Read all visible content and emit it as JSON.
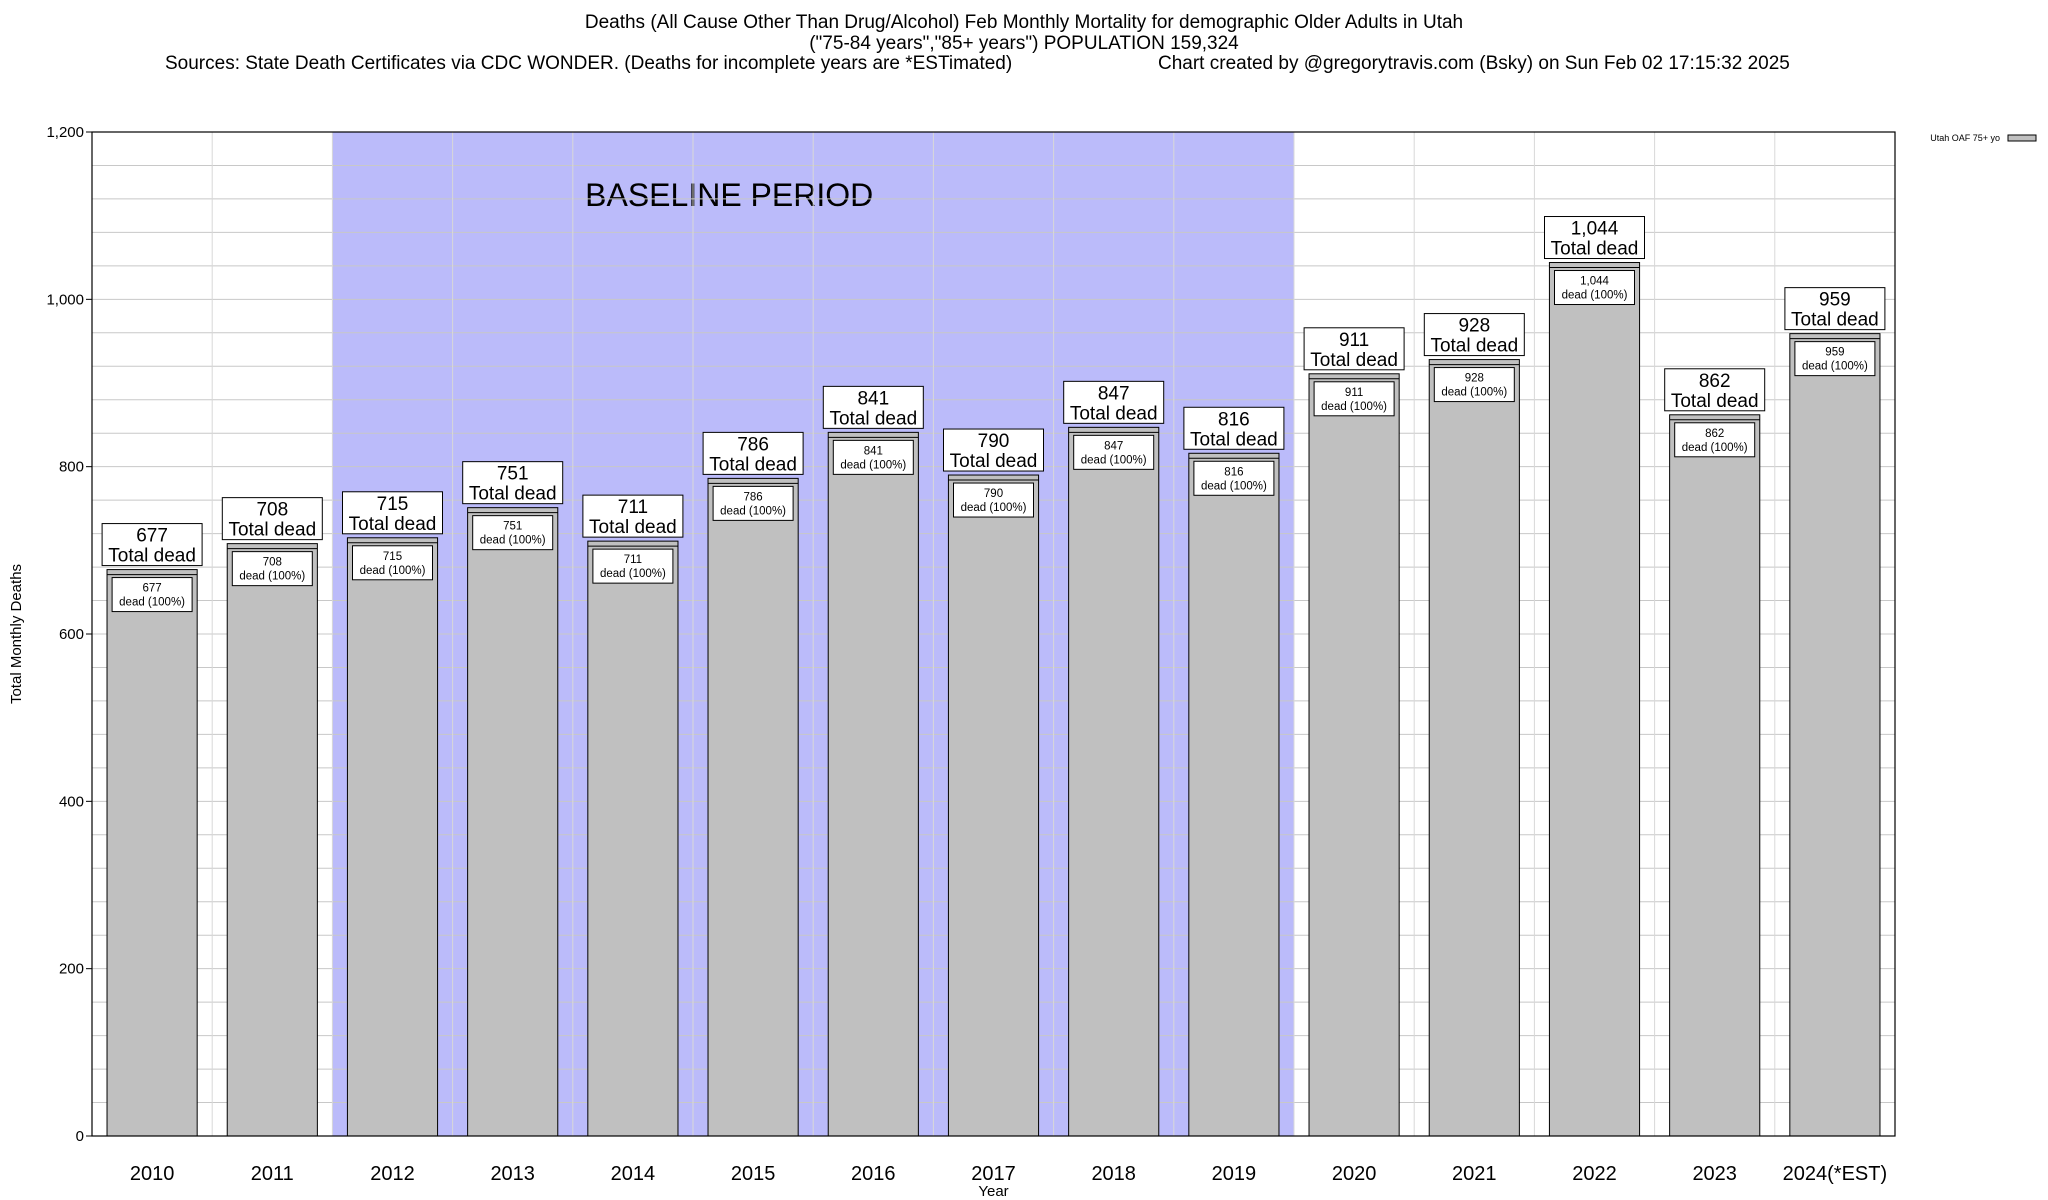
{
  "chart_data": {
    "type": "bar",
    "title": "Deaths (All Cause Other Than Drug/Alcohol) Feb Monthly Mortality for demographic Older Adults in Utah",
    "subtitle": "(\"75-84 years\",\"85+ years\") POPULATION 159,324",
    "sources": "Sources: State Death Certificates via CDC WONDER. (Deaths for incomplete years are *ESTimated)",
    "credit": "Chart created by @gregorytravis.com (Bsky) on Sun Feb 02 17:15:32 2025",
    "xlabel": "Year",
    "ylabel": "Total Monthly Deaths",
    "ylim": [
      0,
      1200
    ],
    "yticks": [
      0,
      200,
      400,
      600,
      800,
      1000,
      1200
    ],
    "ytick_labels": [
      "0",
      "200",
      "400",
      "600",
      "800",
      "1,000",
      "1,200"
    ],
    "minor_grid_step": 40,
    "grid": true,
    "legend": {
      "label": "Utah OAF 75+ yo",
      "placement": "top-right"
    },
    "categories": [
      "2010",
      "2011",
      "2012",
      "2013",
      "2014",
      "2015",
      "2016",
      "2017",
      "2018",
      "2019",
      "2020",
      "2021",
      "2022",
      "2023",
      "2024(*EST)"
    ],
    "series": [
      {
        "name": "Utah OAF 75+ yo",
        "values": [
          677,
          708,
          715,
          751,
          711,
          786,
          841,
          790,
          847,
          816,
          911,
          928,
          1044,
          862,
          959
        ]
      }
    ],
    "value_labels": [
      "677",
      "708",
      "715",
      "751",
      "711",
      "786",
      "841",
      "790",
      "847",
      "816",
      "911",
      "928",
      "1,044",
      "862",
      "959"
    ],
    "top_label_suffix": "Total dead",
    "inner_label_suffix": "dead (100%)",
    "baseline": {
      "label": "BASELINE PERIOD",
      "start": "2012",
      "end": "2019"
    },
    "colors": {
      "bar": "#c0c0c0",
      "baseline": "#bbbbfa",
      "grid": "#c8c8c8"
    }
  }
}
